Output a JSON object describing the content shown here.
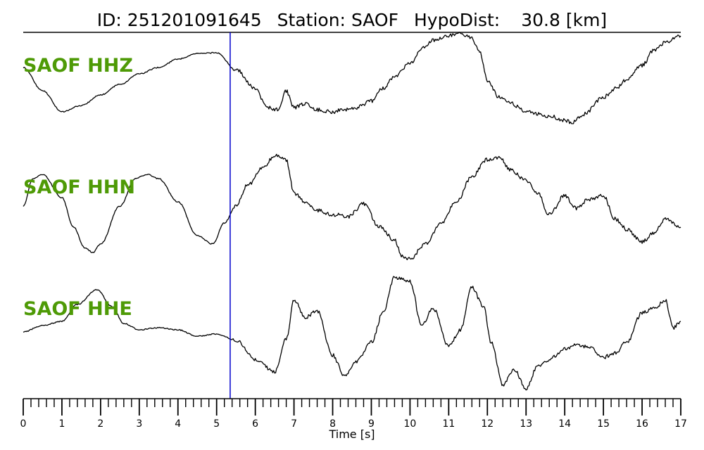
{
  "header": {
    "id_label": "ID:",
    "id_value": "251201091645",
    "station_label": "Station:",
    "station_value": "SAOF",
    "hypodist_label": "HypoDist:",
    "hypodist_value": "30.8",
    "hypodist_unit": "[km]"
  },
  "colors": {
    "trace": "#000000",
    "channel_label": "#4e9a06",
    "marker": "#0000cc"
  },
  "chart_data": {
    "type": "line",
    "title": "ID: 251201091645   Station: SAOF   HypoDist:    30.8 [km]",
    "xlabel": "Time [s]",
    "ylabel": "",
    "xlim": [
      0,
      17
    ],
    "x_ticks": [
      "0",
      "1",
      "2",
      "3",
      "4",
      "5",
      "6",
      "7",
      "8",
      "9",
      "10",
      "11",
      "12",
      "13",
      "14",
      "15",
      "16",
      "17"
    ],
    "minor_tick_step": 0.2,
    "grid": false,
    "legend": "none",
    "marker_line": {
      "x": 5.35,
      "color": "#0000cc"
    },
    "series": [
      {
        "name": "SAOF HHZ",
        "x": [
          0,
          0.5,
          1,
          1.5,
          2,
          2.5,
          3,
          3.5,
          4,
          4.5,
          5,
          5.5,
          6,
          6.3,
          6.6,
          6.8,
          7,
          7.3,
          7.6,
          8,
          8.3,
          8.6,
          9,
          9.3,
          9.6,
          10,
          10.3,
          10.6,
          11,
          11.3,
          11.6,
          11.8,
          12,
          12.3,
          12.6,
          13,
          13.3,
          13.6,
          14,
          14.2,
          14.5,
          15,
          15.3,
          15.6,
          16,
          16.3,
          16.6,
          17
        ],
        "y": [
          0.6,
          0.05,
          -0.45,
          -0.3,
          -0.05,
          0.2,
          0.45,
          0.6,
          0.8,
          0.93,
          0.95,
          0.55,
          0.1,
          -0.35,
          -0.4,
          0.05,
          -0.35,
          -0.25,
          -0.4,
          -0.45,
          -0.4,
          -0.35,
          -0.2,
          0.1,
          0.4,
          0.7,
          1.05,
          1.25,
          1.35,
          1.4,
          1.3,
          0.95,
          0.3,
          -0.1,
          -0.25,
          -0.45,
          -0.5,
          -0.55,
          -0.65,
          -0.7,
          -0.5,
          -0.1,
          0.1,
          0.3,
          0.65,
          1.0,
          1.2,
          1.35
        ]
      },
      {
        "name": "SAOF HHN",
        "x": [
          0,
          0.25,
          0.5,
          1,
          1.3,
          1.6,
          1.8,
          2,
          2.5,
          2.9,
          3.2,
          3.5,
          4,
          4.5,
          4.9,
          5.2,
          5.5,
          5.8,
          6.2,
          6.5,
          6.8,
          7,
          7.3,
          7.6,
          8,
          8.4,
          8.8,
          9.2,
          9.6,
          9.8,
          10,
          10.4,
          10.8,
          11.2,
          11.6,
          12,
          12.3,
          12.6,
          13,
          13.3,
          13.6,
          14,
          14.3,
          14.6,
          15,
          15.3,
          15.6,
          16,
          16.3,
          16.6,
          17
        ],
        "y": [
          0.2,
          0.85,
          0.95,
          0.4,
          -0.3,
          -0.8,
          -0.9,
          -0.7,
          0.2,
          0.85,
          0.95,
          0.85,
          0.3,
          -0.5,
          -0.7,
          -0.2,
          0.2,
          0.7,
          1.1,
          1.4,
          1.3,
          0.5,
          0.3,
          0.1,
          0.0,
          -0.05,
          0.25,
          -0.3,
          -0.6,
          -1.0,
          -1.05,
          -0.7,
          -0.2,
          0.3,
          0.9,
          1.3,
          1.35,
          1.05,
          0.8,
          0.5,
          0.0,
          0.45,
          0.15,
          0.35,
          0.45,
          -0.1,
          -0.35,
          -0.65,
          -0.45,
          -0.1,
          -0.3
        ]
      },
      {
        "name": "SAOF HHE",
        "x": [
          0,
          0.5,
          1,
          1.4,
          1.9,
          2.3,
          2.6,
          3,
          3.5,
          4,
          4.5,
          5,
          5.5,
          6,
          6.5,
          6.8,
          7,
          7.3,
          7.6,
          8,
          8.3,
          8.6,
          9,
          9.3,
          9.6,
          9.8,
          10,
          10.3,
          10.6,
          11,
          11.3,
          11.6,
          11.9,
          12.1,
          12.4,
          12.7,
          13,
          13.3,
          13.6,
          14,
          14.3,
          14.6,
          15,
          15.3,
          15.6,
          16,
          16.3,
          16.6,
          16.8,
          17
        ],
        "y": [
          0.05,
          0.2,
          0.3,
          0.7,
          1.05,
          0.65,
          0.25,
          0.1,
          0.15,
          0.1,
          -0.05,
          0.0,
          -0.15,
          -0.6,
          -0.9,
          -0.1,
          0.8,
          0.4,
          0.55,
          -0.5,
          -1.0,
          -0.65,
          -0.2,
          0.5,
          1.35,
          1.3,
          1.25,
          0.2,
          0.6,
          -0.3,
          0.1,
          1.1,
          0.65,
          -0.2,
          -1.2,
          -0.85,
          -1.3,
          -0.75,
          -0.6,
          -0.35,
          -0.25,
          -0.3,
          -0.55,
          -0.45,
          -0.2,
          0.5,
          0.6,
          0.8,
          0.15,
          0.3
        ]
      }
    ]
  }
}
